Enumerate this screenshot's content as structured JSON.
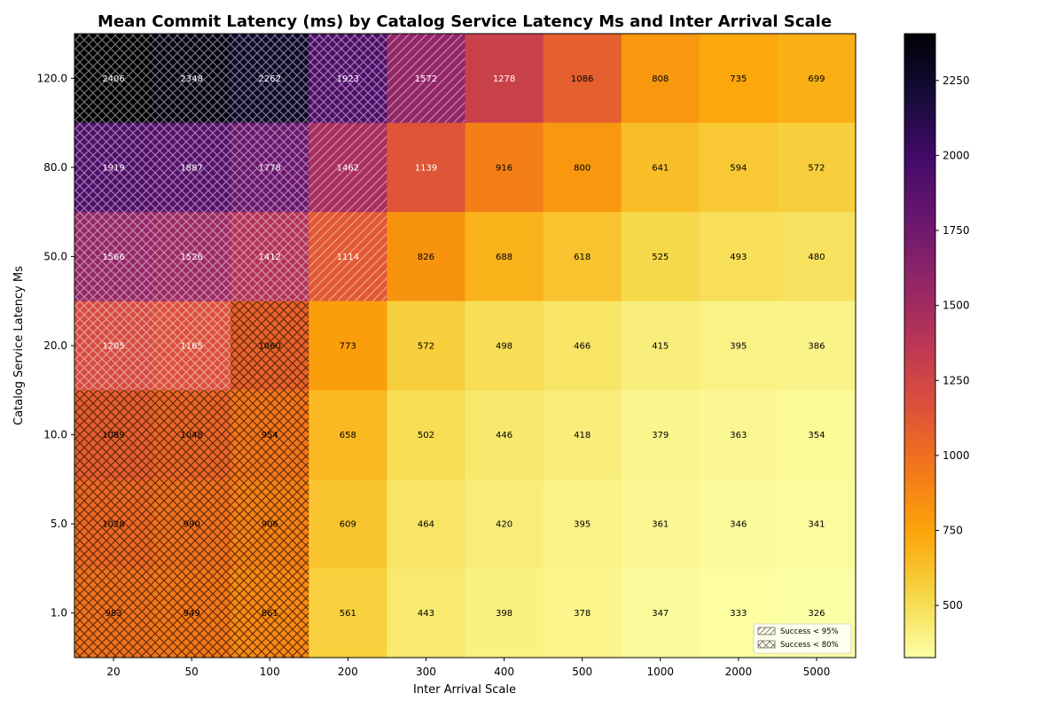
{
  "chart_data": {
    "type": "heatmap",
    "title": "Mean Commit Latency (ms) by Catalog Service Latency Ms and Inter Arrival Scale",
    "xlabel": "Inter Arrival Scale",
    "ylabel": "Catalog Service Latency Ms",
    "x_categories": [
      "20",
      "50",
      "100",
      "200",
      "300",
      "400",
      "500",
      "1000",
      "2000",
      "5000"
    ],
    "y_categories": [
      "120.0",
      "80.0",
      "50.0",
      "20.0",
      "10.0",
      "5.0",
      "1.0"
    ],
    "values": [
      [
        2406,
        2348,
        2262,
        1923,
        1572,
        1278,
        1086,
        808,
        735,
        699
      ],
      [
        1919,
        1887,
        1778,
        1462,
        1139,
        916,
        800,
        641,
        594,
        572
      ],
      [
        1566,
        1526,
        1412,
        1114,
        826,
        688,
        618,
        525,
        493,
        480
      ],
      [
        1205,
        1165,
        1060,
        773,
        572,
        498,
        466,
        415,
        395,
        386
      ],
      [
        1089,
        1048,
        954,
        658,
        502,
        446,
        418,
        379,
        363,
        354
      ],
      [
        1028,
        990,
        906,
        609,
        464,
        420,
        395,
        361,
        346,
        341
      ],
      [
        983,
        949,
        861,
        561,
        443,
        398,
        378,
        347,
        333,
        326
      ]
    ],
    "hatch": [
      [
        "x",
        "x",
        "x",
        "x",
        "/",
        "",
        "",
        "",
        "",
        ""
      ],
      [
        "x",
        "x",
        "x",
        "/",
        "",
        "",
        "",
        "",
        "",
        ""
      ],
      [
        "x",
        "x",
        "x",
        "/",
        "",
        "",
        "",
        "",
        "",
        ""
      ],
      [
        "x",
        "x",
        "x",
        "",
        "",
        "",
        "",
        "",
        "",
        ""
      ],
      [
        "x",
        "x",
        "x",
        "",
        "",
        "",
        "",
        "",
        "",
        ""
      ],
      [
        "x",
        "x",
        "x",
        "",
        "",
        "",
        "",
        "",
        "",
        ""
      ],
      [
        "x",
        "x",
        "x",
        "",
        "",
        "",
        "",
        "",
        "",
        ""
      ]
    ],
    "colormap": "inferno_r",
    "color_range": [
      326,
      2406
    ],
    "colorbar_ticks": [
      "500",
      "750",
      "1000",
      "1250",
      "1500",
      "1750",
      "2000",
      "2250"
    ],
    "colorbar_tick_values": [
      500,
      750,
      1000,
      1250,
      1500,
      1750,
      2000,
      2250
    ],
    "legend": {
      "placement": "lower-right",
      "entries": [
        {
          "label": "Success < 95%",
          "hatch": "/"
        },
        {
          "label": "Success < 80%",
          "hatch": "x"
        }
      ]
    }
  }
}
